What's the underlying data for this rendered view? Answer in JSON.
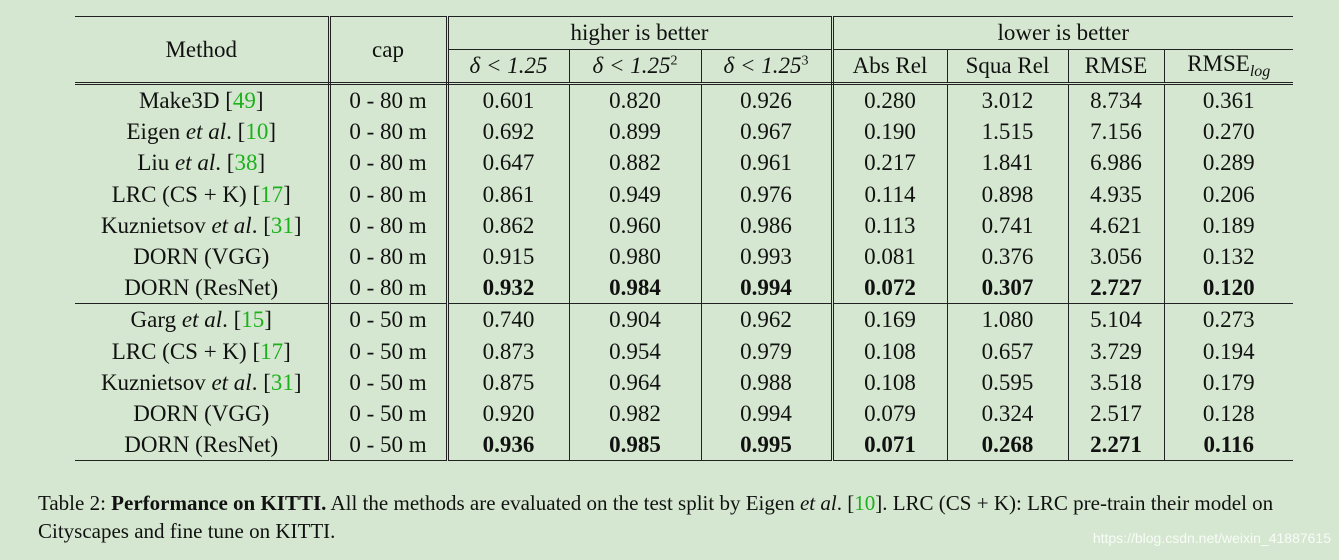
{
  "table": {
    "group_higher": "higher is better",
    "group_lower": "lower is better",
    "col_method": "Method",
    "col_cap": "cap",
    "metrics_higher": [
      "δ < 1.25",
      "δ < 1.25",
      "δ < 1.25"
    ],
    "metrics_higher_sup": [
      "",
      "2",
      "3"
    ],
    "metric_absrel": "Abs Rel",
    "metric_squarel": "Squa Rel",
    "metric_rmse": "RMSE",
    "metric_rmselog": "RMSE",
    "metric_rmselog_sub": "log",
    "rows": [
      {
        "pre": "Make3D ",
        "em": "",
        "post": "",
        "cite": "49",
        "cap": "0 - 80 m",
        "v": [
          "0.601",
          "0.820",
          "0.926",
          "0.280",
          "3.012",
          "8.734",
          "0.361"
        ],
        "bold": false
      },
      {
        "pre": "Eigen ",
        "em": "et al",
        "post": ". ",
        "cite": "10",
        "cap": "0 - 80 m",
        "v": [
          "0.692",
          "0.899",
          "0.967",
          "0.190",
          "1.515",
          "7.156",
          "0.270"
        ],
        "bold": false
      },
      {
        "pre": "Liu ",
        "em": "et al",
        "post": ". ",
        "cite": "38",
        "cap": "0 - 80 m",
        "v": [
          "0.647",
          "0.882",
          "0.961",
          "0.217",
          "1.841",
          "6.986",
          "0.289"
        ],
        "bold": false
      },
      {
        "pre": "LRC (CS + K) ",
        "em": "",
        "post": "",
        "cite": "17",
        "cap": "0 - 80 m",
        "v": [
          "0.861",
          "0.949",
          "0.976",
          "0.114",
          "0.898",
          "4.935",
          "0.206"
        ],
        "bold": false
      },
      {
        "pre": "Kuznietsov ",
        "em": "et al",
        "post": ". ",
        "cite": "31",
        "cap": "0 - 80 m",
        "v": [
          "0.862",
          "0.960",
          "0.986",
          "0.113",
          "0.741",
          "4.621",
          "0.189"
        ],
        "bold": false
      },
      {
        "pre": "DORN (VGG)",
        "em": "",
        "post": "",
        "cite": "",
        "cap": "0 - 80 m",
        "v": [
          "0.915",
          "0.980",
          "0.993",
          "0.081",
          "0.376",
          "3.056",
          "0.132"
        ],
        "bold": false
      },
      {
        "pre": "DORN (ResNet)",
        "em": "",
        "post": "",
        "cite": "",
        "cap": "0 - 80 m",
        "v": [
          "0.932",
          "0.984",
          "0.994",
          "0.072",
          "0.307",
          "2.727",
          "0.120"
        ],
        "bold": true
      },
      {
        "pre": "Garg ",
        "em": "et al",
        "post": ". ",
        "cite": "15",
        "cap": "0 - 50 m",
        "v": [
          "0.740",
          "0.904",
          "0.962",
          "0.169",
          "1.080",
          "5.104",
          "0.273"
        ],
        "bold": false
      },
      {
        "pre": "LRC (CS + K) ",
        "em": "",
        "post": "",
        "cite": "17",
        "cap": "0 - 50 m",
        "v": [
          "0.873",
          "0.954",
          "0.979",
          "0.108",
          "0.657",
          "3.729",
          "0.194"
        ],
        "bold": false
      },
      {
        "pre": "Kuznietsov ",
        "em": "et al",
        "post": ". ",
        "cite": "31",
        "cap": "0 - 50 m",
        "v": [
          "0.875",
          "0.964",
          "0.988",
          "0.108",
          "0.595",
          "3.518",
          "0.179"
        ],
        "bold": false
      },
      {
        "pre": "DORN (VGG)",
        "em": "",
        "post": "",
        "cite": "",
        "cap": "0 - 50 m",
        "v": [
          "0.920",
          "0.982",
          "0.994",
          "0.079",
          "0.324",
          "2.517",
          "0.128"
        ],
        "bold": false
      },
      {
        "pre": "DORN (ResNet)",
        "em": "",
        "post": "",
        "cite": "",
        "cap": "0 - 50 m",
        "v": [
          "0.936",
          "0.985",
          "0.995",
          "0.071",
          "0.268",
          "2.271",
          "0.116"
        ],
        "bold": true
      }
    ]
  },
  "caption": {
    "label": "Table 2: ",
    "bold": "Performance on KITTI.",
    "text1": " All the methods are evaluated on the test split by Eigen ",
    "em": "et al",
    "text2": ". [",
    "cite": "10",
    "text3": "]. LRC (CS + K): LRC pre-train their model on Cityscapes and fine tune on KITTI."
  },
  "watermark": "https://blog.csdn.net/weixin_41887615",
  "colors": {
    "background": "#d5e7d0",
    "citation": "#1db01d"
  }
}
